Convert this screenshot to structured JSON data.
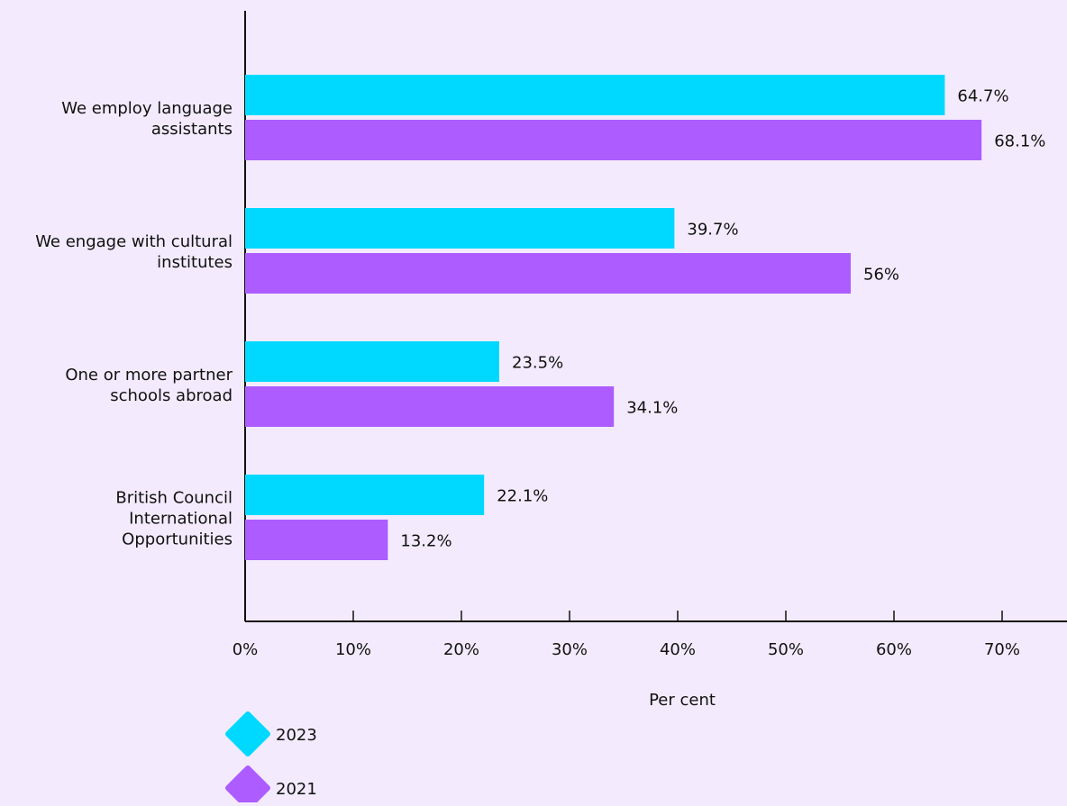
{
  "chart_data": {
    "type": "bar",
    "orientation": "horizontal",
    "categories": [
      "We employ language assistants",
      "We engage with cultural institutes",
      "One or more partner schools abroad",
      "British Council International Opportunities"
    ],
    "category_lines": [
      [
        "We employ language",
        "assistants"
      ],
      [
        "We engage with cultural",
        "institutes"
      ],
      [
        "One or more partner",
        "schools abroad"
      ],
      [
        "British Council",
        "International",
        "Opportunities"
      ]
    ],
    "series": [
      {
        "name": "2023",
        "color": "#00d9ff",
        "values": [
          64.7,
          39.7,
          23.5,
          22.1
        ],
        "labels": [
          "64.7%",
          "39.7%",
          "23.5%",
          "22.1%"
        ]
      },
      {
        "name": "2021",
        "color": "#ad5cff",
        "values": [
          68.1,
          56,
          34.1,
          13.2
        ],
        "labels": [
          "68.1%",
          "56%",
          "34.1%",
          "13.2%"
        ]
      }
    ],
    "xlabel": "Per cent",
    "xlim": [
      0,
      76
    ],
    "xticks": [
      0,
      10,
      20,
      30,
      40,
      50,
      60,
      70
    ],
    "xtick_labels": [
      "0%",
      "10%",
      "20%",
      "30%",
      "40%",
      "50%",
      "60%",
      "70%"
    ],
    "grid": false,
    "legend_position": "bottom-left"
  }
}
